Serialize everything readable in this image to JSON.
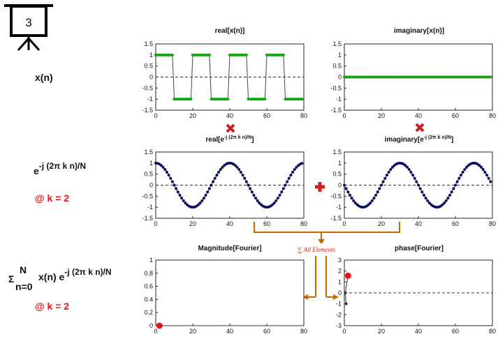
{
  "slide_number": "3",
  "labels": {
    "xn": "x(n)",
    "exp": "e",
    "exp_sup": "-j (2π k n)/N",
    "at_k1": "@ k = 2",
    "sum_sigma": "Σ",
    "sum_sup": "N",
    "sum_sub": "n=0",
    "sum_body": "x(n) e",
    "sum_body_sup": "-j (2π k n)/N",
    "at_k2": "@ k = 2"
  },
  "annotation": "∑ All Elements",
  "colors": {
    "accent": "#ee1111",
    "arrow": "#cc6600",
    "green": "#00cc00",
    "navy": "#0a0a7a"
  },
  "chart_data": [
    {
      "id": "p1",
      "type": "line",
      "title": "real[x(n)]",
      "xlim": [
        0,
        80
      ],
      "ylim": [
        -1.5,
        1.5
      ],
      "xticks": [
        "0",
        "20",
        "40",
        "60",
        "80"
      ],
      "yticks": [
        "1.5",
        "1",
        "0.5",
        "0",
        "-0.5",
        "-1",
        "-1.5"
      ],
      "series": [
        {
          "kind": "square",
          "period": 20,
          "high_start": 0,
          "n_max": 79,
          "values_high": 1,
          "values_low": -1
        }
      ]
    },
    {
      "id": "p2",
      "type": "line",
      "title": "imaginary[x(n)]",
      "xlim": [
        0,
        80
      ],
      "ylim": [
        -1.5,
        1.5
      ],
      "xticks": [
        "0",
        "20",
        "40",
        "60",
        "80"
      ],
      "yticks": [
        "1.5",
        "1",
        "0.5",
        "0",
        "-0.5",
        "-1",
        "-1.5"
      ],
      "series": [
        {
          "kind": "const",
          "value": 0,
          "n_max": 79
        }
      ]
    },
    {
      "id": "p3",
      "type": "line",
      "title": "real[e",
      "title_sup": "-j (2π k n)/N",
      "title_end": "]",
      "xlim": [
        0,
        80
      ],
      "ylim": [
        -1.5,
        1.5
      ],
      "xticks": [
        "0",
        "20",
        "40",
        "60",
        "80"
      ],
      "yticks": [
        "1.5",
        "1",
        "0.5",
        "0",
        "-0.5",
        "-1",
        "-1.5"
      ],
      "series": [
        {
          "kind": "cos",
          "period": 40,
          "n_max": 79
        }
      ]
    },
    {
      "id": "p4",
      "type": "line",
      "title": "imaginary[e",
      "title_sup": "-j (2π k n)/N",
      "title_end": "]",
      "xlim": [
        0,
        80
      ],
      "ylim": [
        -1.5,
        1.5
      ],
      "xticks": [
        "0",
        "20",
        "40",
        "60",
        "80"
      ],
      "yticks": [
        "1.5",
        "1",
        "0.5",
        "0",
        "-0.5",
        "-1",
        "-1.5"
      ],
      "series": [
        {
          "kind": "negsin",
          "period": 40,
          "n_max": 79
        }
      ]
    },
    {
      "id": "p5",
      "type": "scatter",
      "title": "Magnitude[Fourier]",
      "xlim": [
        0,
        80
      ],
      "ylim": [
        0,
        1
      ],
      "xticks": [
        "0",
        "20",
        "40",
        "60",
        "80"
      ],
      "yticks": [
        "1",
        "0.8",
        "0.6",
        "0.4",
        "0.2",
        "0"
      ],
      "series": [
        {
          "kind": "points",
          "points": [
            [
              2,
              0
            ]
          ]
        }
      ]
    },
    {
      "id": "p6",
      "type": "scatter",
      "title": "phase[Fourier]",
      "xlim": [
        0,
        80
      ],
      "ylim": [
        -3,
        3
      ],
      "xticks": [
        "0",
        "20",
        "40",
        "60",
        "80"
      ],
      "yticks": [
        "3",
        "2",
        "1",
        "0",
        "-1",
        "-2",
        "-3"
      ],
      "series": [
        {
          "kind": "points",
          "points": [
            [
              1,
              -1
            ],
            [
              0.5,
              0
            ],
            [
              2,
              1.57
            ]
          ]
        }
      ]
    }
  ]
}
